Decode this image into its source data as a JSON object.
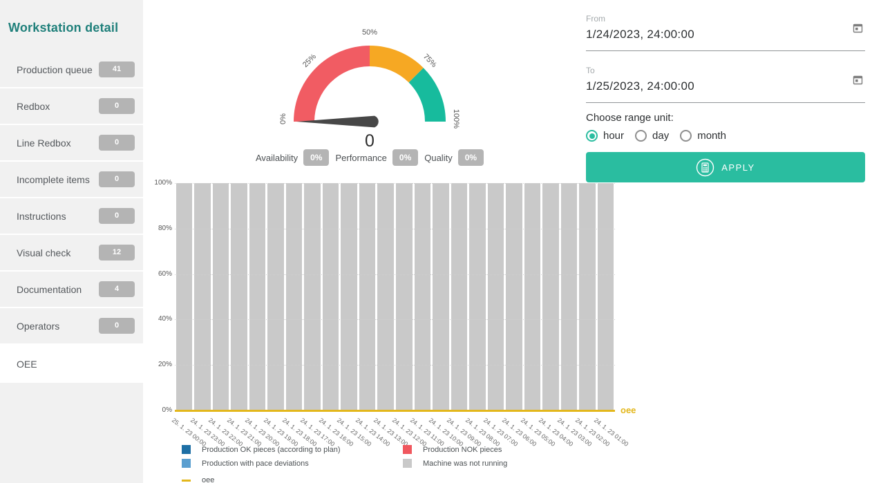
{
  "colors": {
    "accent": "#2abda0",
    "title-teal": "#20807b",
    "badge-gray": "#b4b4b4",
    "sidebar-bg": "#f1f1f1",
    "oee-yellow": "#e3b71c",
    "needle": "#474747"
  },
  "sidebar": {
    "title": "Workstation detail",
    "items": [
      {
        "label": "Production queue",
        "badge": "41",
        "active": false
      },
      {
        "label": "Redbox",
        "badge": "0",
        "active": false
      },
      {
        "label": "Line Redbox",
        "badge": "0",
        "active": false
      },
      {
        "label": "Incomplete items",
        "badge": "0",
        "active": false
      },
      {
        "label": "Instructions",
        "badge": "0",
        "active": false
      },
      {
        "label": "Visual check",
        "badge": "12",
        "active": false
      },
      {
        "label": "Documentation",
        "badge": "4",
        "active": false
      },
      {
        "label": "Operators",
        "badge": "0",
        "active": false
      },
      {
        "label": "OEE",
        "badge": null,
        "active": true
      }
    ]
  },
  "gauge": {
    "ticks": [
      "0%",
      "25%",
      "50%",
      "75%",
      "100%"
    ],
    "value": "0",
    "needle_value": 0,
    "segments": [
      {
        "from": 0,
        "to": 50,
        "color": "#f15c63"
      },
      {
        "from": 50,
        "to": 75,
        "color": "#f6a823"
      },
      {
        "from": 75,
        "to": 100,
        "color": "#17bb9d"
      }
    ]
  },
  "kpis": [
    {
      "label": "Availability",
      "value": "0%"
    },
    {
      "label": "Performance",
      "value": "0%"
    },
    {
      "label": "Quality",
      "value": "0%"
    }
  ],
  "filters": {
    "from_label": "From",
    "from_value": "1/24/2023, 24:00:00",
    "to_label": "To",
    "to_value": "1/25/2023, 24:00:00",
    "range_label": "Choose range unit:",
    "range_options": [
      {
        "label": "hour",
        "selected": true
      },
      {
        "label": "day",
        "selected": false
      },
      {
        "label": "month",
        "selected": false
      }
    ],
    "apply_label": "APPLY"
  },
  "chart_data": {
    "type": "bar",
    "stacked": true,
    "categories": [
      "25. 1. 23 00:00",
      "24. 1. 23 23:00",
      "24. 1. 23 22:00",
      "24. 1. 23 21:00",
      "24. 1. 23 20:00",
      "24. 1. 23 19:00",
      "24. 1. 23 18:00",
      "24. 1. 23 17:00",
      "24. 1. 23 16:00",
      "24. 1. 23 15:00",
      "24. 1. 23 14:00",
      "24. 1. 23 13:00",
      "24. 1. 23 12:00",
      "24. 1. 23 11:00",
      "24. 1. 23 10:00",
      "24. 1. 23 09:00",
      "24. 1. 23 08:00",
      "24. 1. 23 07:00",
      "24. 1. 23 06:00",
      "24. 1. 23 05:00",
      "24. 1. 23 04:00",
      "24. 1. 23 03:00",
      "24. 1. 23 02:00",
      "24. 1. 23 01:00"
    ],
    "series": [
      {
        "name": "Production OK pieces (according to plan)",
        "color": "#1d6fa5",
        "values": [
          0,
          0,
          0,
          0,
          0,
          0,
          0,
          0,
          0,
          0,
          0,
          0,
          0,
          0,
          0,
          0,
          0,
          0,
          0,
          0,
          0,
          0,
          0,
          0
        ]
      },
      {
        "name": "Production NOK pieces",
        "color": "#f0575e",
        "values": [
          0,
          0,
          0,
          0,
          0,
          0,
          0,
          0,
          0,
          0,
          0,
          0,
          0,
          0,
          0,
          0,
          0,
          0,
          0,
          0,
          0,
          0,
          0,
          0
        ]
      },
      {
        "name": "Production with pace deviations",
        "color": "#5b9fd0",
        "values": [
          0,
          0,
          0,
          0,
          0,
          0,
          0,
          0,
          0,
          0,
          0,
          0,
          0,
          0,
          0,
          0,
          0,
          0,
          0,
          0,
          0,
          0,
          0,
          0
        ]
      },
      {
        "name": "Machine was not running",
        "color": "#c9c9c9",
        "values": [
          100,
          100,
          100,
          100,
          100,
          100,
          100,
          100,
          100,
          100,
          100,
          100,
          100,
          100,
          100,
          100,
          100,
          100,
          100,
          100,
          100,
          100,
          100,
          100
        ]
      }
    ],
    "line_series": {
      "name": "oee",
      "color": "#e3b71c",
      "values": [
        0,
        0,
        0,
        0,
        0,
        0,
        0,
        0,
        0,
        0,
        0,
        0,
        0,
        0,
        0,
        0,
        0,
        0,
        0,
        0,
        0,
        0,
        0,
        0
      ]
    },
    "y_ticks": [
      "0%",
      "20%",
      "40%",
      "60%",
      "80%",
      "100%"
    ],
    "ylim": [
      0,
      100
    ],
    "grid": true,
    "end_label": "oee"
  },
  "legend": {
    "columns": [
      [
        {
          "label": "Production OK pieces (according to plan)",
          "color": "#1d6fa5",
          "shape": "square"
        },
        {
          "label": "Production with pace deviations",
          "color": "#5b9fd0",
          "shape": "square"
        },
        {
          "label": "oee",
          "color": "#e3b71c",
          "shape": "line"
        }
      ],
      [
        {
          "label": "Production NOK pieces",
          "color": "#f0575e",
          "shape": "square"
        },
        {
          "label": "Machine was not running",
          "color": "#c9c9c9",
          "shape": "square"
        }
      ]
    ]
  }
}
